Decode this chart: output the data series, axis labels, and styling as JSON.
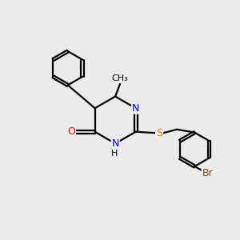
{
  "background_color": "#ebebeb",
  "bond_color": "#000000",
  "bond_width": 1.6,
  "atom_colors": {
    "N": "#0000ff",
    "O": "#ff0000",
    "S": "#cc8800",
    "Br": "#8b4513",
    "C": "#000000",
    "H": "#000000"
  },
  "font_size": 9,
  "fig_size": [
    3.0,
    3.0
  ],
  "dpi": 100
}
